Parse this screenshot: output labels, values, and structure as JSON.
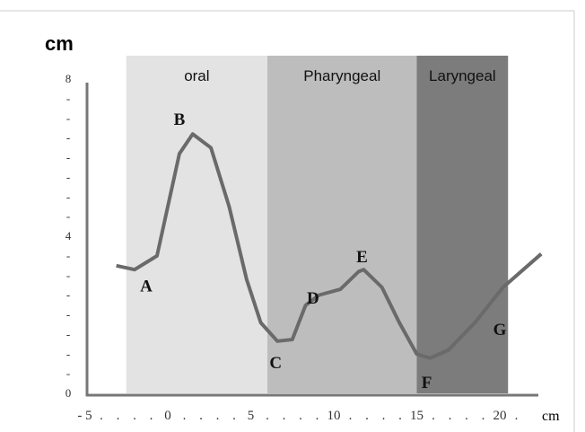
{
  "chart_data": {
    "type": "line",
    "y_label": "cm",
    "x_label": "cm",
    "xlim": [
      -5,
      23
    ],
    "ylim": [
      0,
      8
    ],
    "xticks": [
      {
        "value": -5,
        "label": "- 5"
      },
      {
        "value": -4,
        "label": "."
      },
      {
        "value": -3,
        "label": "."
      },
      {
        "value": -2,
        "label": "."
      },
      {
        "value": -1,
        "label": "."
      },
      0,
      {
        "value": 1,
        "label": "."
      },
      {
        "value": 2,
        "label": "."
      },
      {
        "value": 3,
        "label": "."
      },
      {
        "value": 4,
        "label": "."
      },
      5,
      {
        "value": 6,
        "label": "."
      },
      {
        "value": 7,
        "label": "."
      },
      {
        "value": 8,
        "label": "."
      },
      {
        "value": 9,
        "label": "."
      },
      10,
      {
        "value": 11,
        "label": "."
      },
      {
        "value": 12,
        "label": "."
      },
      {
        "value": 13,
        "label": "."
      },
      {
        "value": 14,
        "label": "."
      },
      15,
      {
        "value": 16,
        "label": "."
      },
      {
        "value": 17,
        "label": "."
      },
      {
        "value": 18,
        "label": "."
      },
      {
        "value": 19,
        "label": "."
      },
      20,
      {
        "value": 21,
        "label": "."
      }
    ],
    "yticks": [
      0,
      {
        "value": 0.5,
        "label": "-"
      },
      {
        "value": 1,
        "label": "-"
      },
      {
        "value": 1.5,
        "label": "-"
      },
      {
        "value": 2,
        "label": "-"
      },
      {
        "value": 2.5,
        "label": "-"
      },
      {
        "value": 3,
        "label": "-"
      },
      {
        "value": 3.5,
        "label": "-"
      },
      4,
      {
        "value": 4.5,
        "label": "-"
      },
      {
        "value": 5,
        "label": "-"
      },
      {
        "value": 5.5,
        "label": "-"
      },
      {
        "value": 6,
        "label": "-"
      },
      {
        "value": 6.5,
        "label": "-"
      },
      {
        "value": 7,
        "label": "-"
      },
      {
        "value": 7.5,
        "label": "-"
      },
      8
    ],
    "regions": [
      {
        "name": "oral",
        "x": [
          -2.5,
          6
        ],
        "color": "#e3e3e3"
      },
      {
        "name": "Pharyngeal",
        "x": [
          6,
          15
        ],
        "color": "#bdbdbd"
      },
      {
        "name": "Laryngeal",
        "x": [
          15,
          20.5
        ],
        "color": "#7c7c7c"
      }
    ],
    "series": [
      {
        "color": "#6a6a6a",
        "x": [
          -3.1,
          -2,
          -0.65,
          0.7,
          1.5,
          2.6,
          3.7,
          4.75,
          5.6,
          6.6,
          7.5,
          8.3,
          9.1,
          10.4,
          11.5,
          11.8,
          12.9,
          13.95,
          15,
          15.8,
          16.9,
          18.5,
          20.2,
          22.5
        ],
        "values": [
          3.25,
          3.15,
          3.5,
          6.1,
          6.6,
          6.25,
          4.75,
          2.9,
          1.8,
          1.33,
          1.37,
          2.24,
          2.5,
          2.65,
          3.1,
          3.15,
          2.7,
          1.8,
          1.0,
          0.9,
          1.1,
          1.8,
          2.7,
          3.55
        ]
      }
    ],
    "annotations": [
      {
        "text": "A",
        "x": -1.3,
        "y": 2.75
      },
      {
        "text": "B",
        "x": 0.7,
        "y": 7
      },
      {
        "text": "C",
        "x": 6.5,
        "y": 0.8
      },
      {
        "text": "D",
        "x": 8.75,
        "y": 2.45
      },
      {
        "text": "E",
        "x": 11.7,
        "y": 3.5
      },
      {
        "text": "F",
        "x": 15.6,
        "y": 0.3
      },
      {
        "text": "G",
        "x": 20,
        "y": 1.65
      }
    ]
  }
}
